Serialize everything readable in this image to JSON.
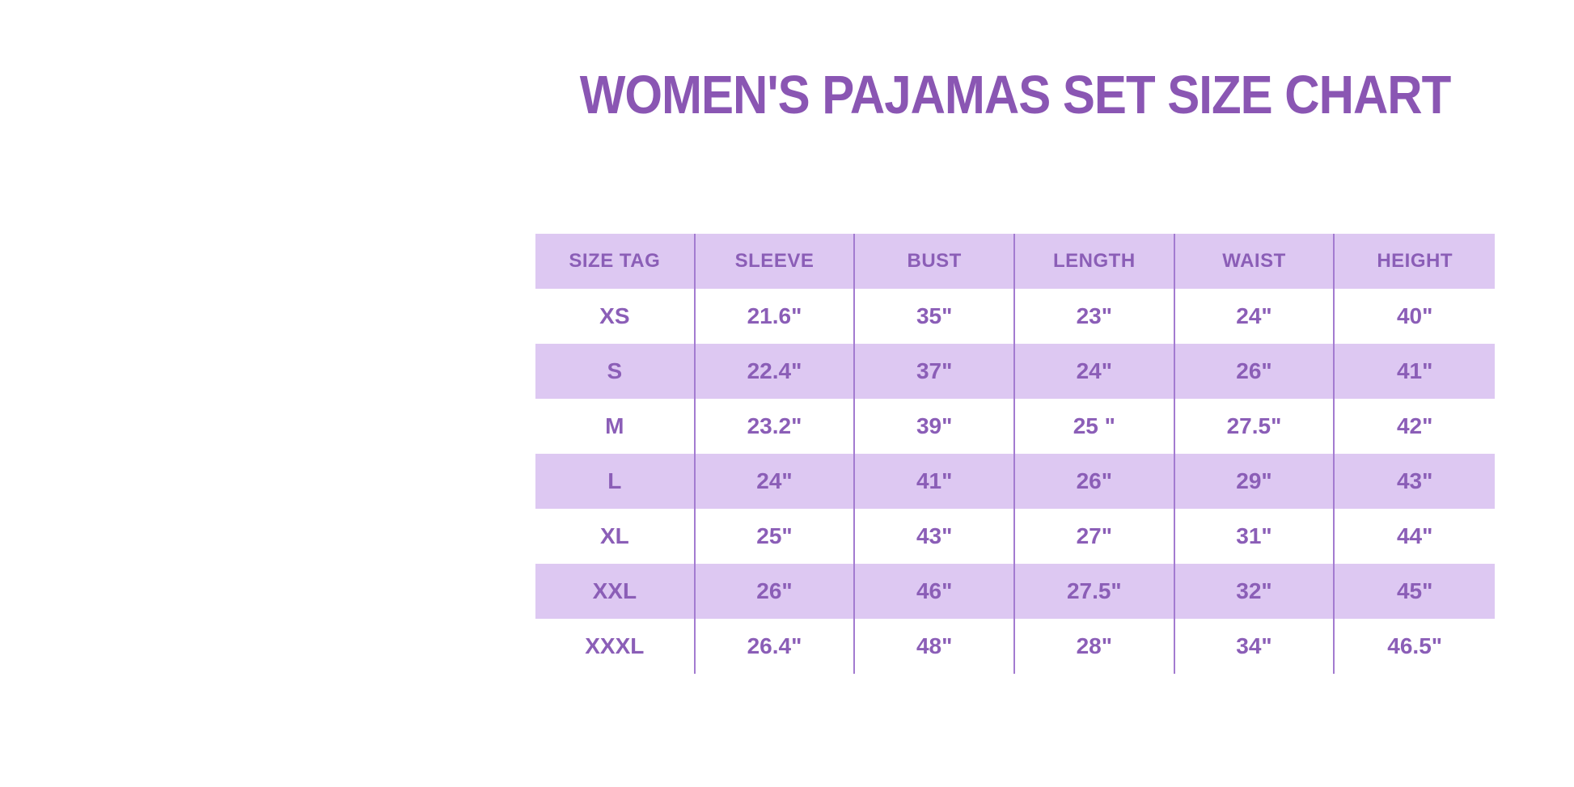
{
  "title": {
    "text": "WOMEN'S PAJAMAS SET SIZE CHART"
  },
  "colors": {
    "title": "#8a56b3",
    "table_text": "#8b5eb7",
    "band": "#ddc8f2",
    "divider": "#a37bd0",
    "background": "#ffffff"
  },
  "table": {
    "columns": [
      "SIZE TAG",
      "SLEEVE",
      "BUST",
      "LENGTH",
      "WAIST",
      "HEIGHT"
    ],
    "rows": [
      {
        "size": "XS",
        "values": [
          "21.6\"",
          "35\"",
          "23\"",
          "24\"",
          "40\""
        ]
      },
      {
        "size": "S",
        "values": [
          "22.4\"",
          "37\"",
          "24\"",
          "26\"",
          "41\""
        ]
      },
      {
        "size": "M",
        "values": [
          "23.2\"",
          "39\"",
          "25 \"",
          "27.5\"",
          "42\""
        ]
      },
      {
        "size": "L",
        "values": [
          "24\"",
          "41\"",
          "26\"",
          "29\"",
          "43\""
        ]
      },
      {
        "size": "XL",
        "values": [
          "25\"",
          "43\"",
          "27\"",
          "31\"",
          "44\""
        ]
      },
      {
        "size": "XXL",
        "values": [
          "26\"",
          "46\"",
          "27.5\"",
          "32\"",
          "45\""
        ]
      },
      {
        "size": "XXXL",
        "values": [
          "26.4\"",
          "48\"",
          "28\"",
          "34\"",
          "46.5\""
        ]
      }
    ]
  },
  "chart_data": {
    "type": "table",
    "title": "WOMEN'S PAJAMAS SET SIZE CHART",
    "columns": [
      "SIZE TAG",
      "SLEEVE",
      "BUST",
      "LENGTH",
      "WAIST",
      "HEIGHT"
    ],
    "rows": [
      [
        "XS",
        "21.6\"",
        "35\"",
        "23\"",
        "24\"",
        "40\""
      ],
      [
        "S",
        "22.4\"",
        "37\"",
        "24\"",
        "26\"",
        "41\""
      ],
      [
        "M",
        "23.2\"",
        "39\"",
        "25 \"",
        "27.5\"",
        "42\""
      ],
      [
        "L",
        "24\"",
        "41\"",
        "26\"",
        "29\"",
        "43\""
      ],
      [
        "XL",
        "25\"",
        "43\"",
        "27\"",
        "31\"",
        "44\""
      ],
      [
        "XXL",
        "26\"",
        "46\"",
        "27.5\"",
        "32\"",
        "45\""
      ],
      [
        "XXXL",
        "26.4\"",
        "48\"",
        "28\"",
        "34\"",
        "46.5\""
      ]
    ],
    "layout": {
      "header_band": true,
      "alternating_row_bands": [
        "header-lavender",
        "white",
        "lavender",
        "white",
        "lavender",
        "white",
        "lavender",
        "white"
      ],
      "gridlines": "vertical-internal-only"
    }
  }
}
